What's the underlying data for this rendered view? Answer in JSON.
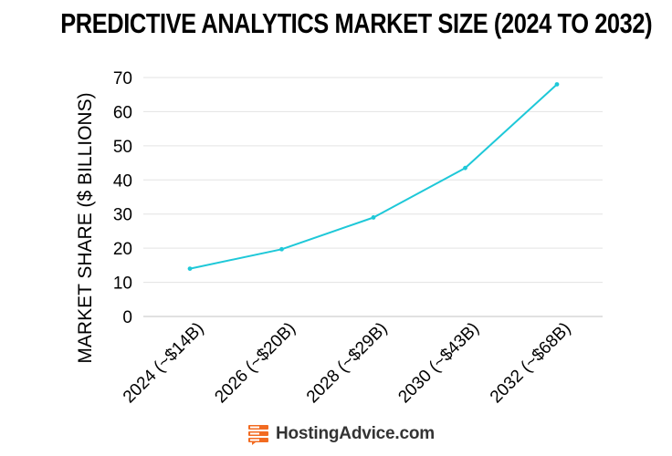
{
  "chart_data": {
    "type": "line",
    "title": "PREDICTIVE ANALYTICS MARKET SIZE (2024 TO 2032)",
    "xlabel": "",
    "ylabel": "MARKET SHARE ($ BILLIONS)",
    "categories": [
      "2024 (~$14B)",
      "2026 (~$20B)",
      "2028 (~$29B)",
      "2030 (~$43B)",
      "2032 (~$68B)"
    ],
    "values": [
      14,
      19.7,
      29,
      43.5,
      68
    ],
    "ylim": [
      0,
      70
    ],
    "yticks": [
      0,
      10,
      20,
      30,
      40,
      50,
      60,
      70
    ],
    "grid": true,
    "line_color": "#1ec8d8",
    "grid_color": "#e3e3e3"
  },
  "branding": {
    "logo_text": "HostingAdvice.com",
    "logo_icon": "hosting-advice-logo-icon",
    "logo_color": "#f26b21"
  }
}
